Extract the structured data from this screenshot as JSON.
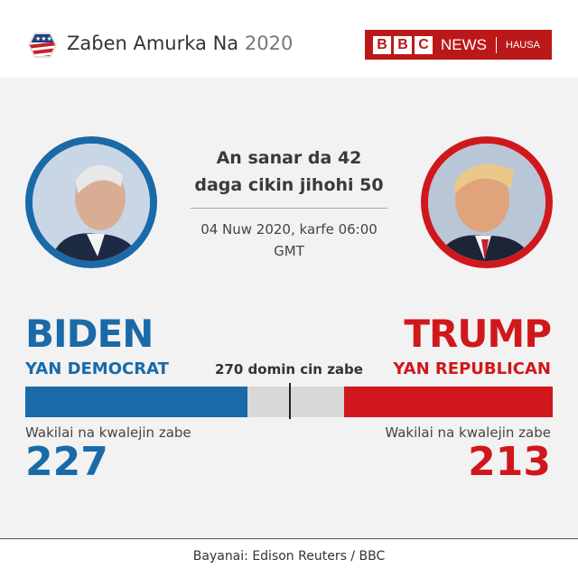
{
  "header": {
    "title": "Zaɓen Amurka Na",
    "year": "2020",
    "brand": {
      "letters": [
        "B",
        "B",
        "C"
      ],
      "news": "NEWS",
      "service": "HAUSA"
    },
    "logo_icon": "us-flag-hexagon-icon"
  },
  "center": {
    "headline_line1": "An sanar da 42",
    "headline_line2": "daga cikin jihohi 50",
    "date_line1": "04 Nuw 2020, karfe 06:00",
    "date_line2": "GMT"
  },
  "threshold_label": "270 domin cin zabe",
  "threshold": 270,
  "total_votes": 538,
  "candidates": [
    {
      "name": "BIDEN",
      "party": "YAN DEMOCRAT",
      "votes_label": "Wakilai na kwalejin zabe",
      "votes": "227",
      "color": "#1a6aa8"
    },
    {
      "name": "TRUMP",
      "party": "YAN REPUBLICAN",
      "votes_label": "Wakilai na kwalejin zabe",
      "votes": "213",
      "color": "#d0181c"
    }
  ],
  "footer": {
    "source": "Bayanai: Edison Reuters / BBC"
  }
}
